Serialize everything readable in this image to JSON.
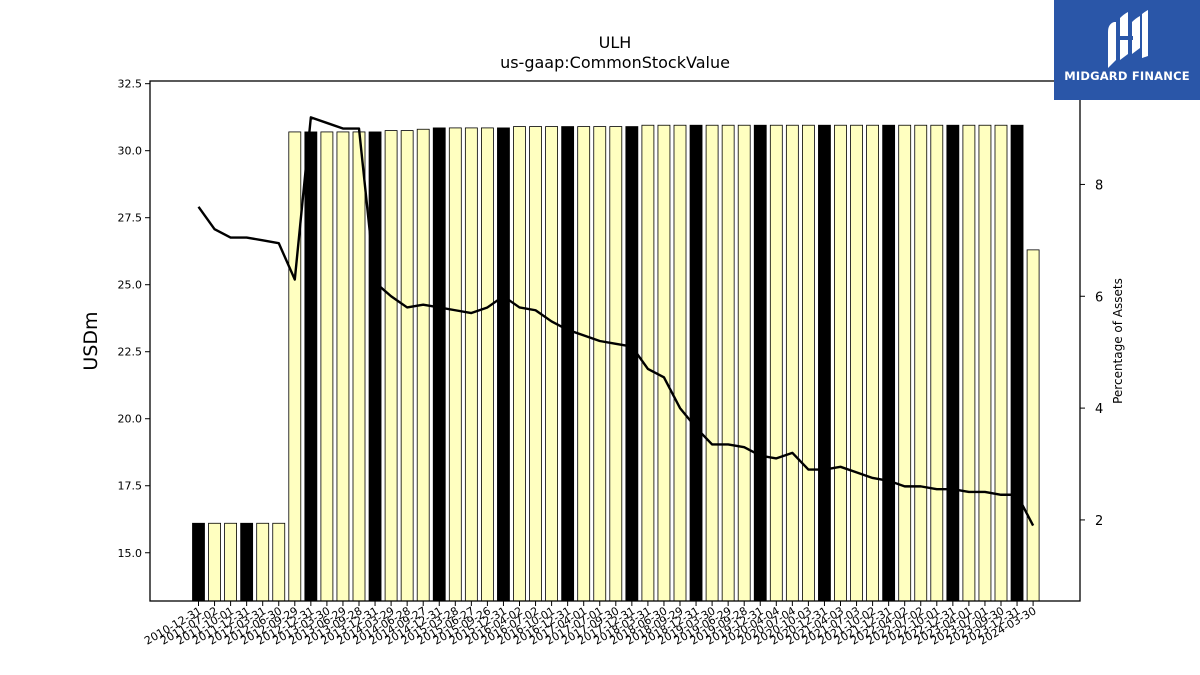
{
  "brand": {
    "name": "MIDGARD FINANCE",
    "icon": "midgard-logo-icon",
    "color": "#2a56a8"
  },
  "chart_data": {
    "type": "bar",
    "title": "ULH",
    "subtitle": "us-gaap:CommonStockValue",
    "ylabel": "USDm",
    "y2label": "Percentage of Assets",
    "ylim": [
      13.2,
      32.6
    ],
    "y2lim": [
      0.55,
      9.85
    ],
    "yticks": [
      15.0,
      17.5,
      20.0,
      22.5,
      25.0,
      27.5,
      30.0,
      32.5
    ],
    "y2ticks": [
      2,
      4,
      6,
      8
    ],
    "colors": {
      "quarter_bar": "#ffffc0",
      "annual_bar": "#000000",
      "line": "#000000"
    },
    "categories": [
      "2010-12-31",
      "2011-07-02",
      "2011-10-01",
      "2011-12-31",
      "2012-03-31",
      "2012-06-30",
      "2012-09-29",
      "2012-12-31",
      "2013-03-30",
      "2013-06-29",
      "2013-09-28",
      "2013-12-31",
      "2014-03-29",
      "2014-06-28",
      "2014-09-27",
      "2014-12-31",
      "2015-03-28",
      "2015-06-27",
      "2015-09-26",
      "2015-12-31",
      "2016-04-02",
      "2016-07-02",
      "2016-10-01",
      "2016-12-31",
      "2017-04-01",
      "2017-07-01",
      "2017-09-30",
      "2017-12-31",
      "2018-03-31",
      "2018-06-30",
      "2018-09-29",
      "2018-12-31",
      "2019-03-30",
      "2019-06-29",
      "2019-09-28",
      "2019-12-31",
      "2020-04-04",
      "2020-07-04",
      "2020-10-03",
      "2020-12-31",
      "2021-04-03",
      "2021-07-03",
      "2021-10-02",
      "2021-12-31",
      "2022-04-02",
      "2022-07-02",
      "2022-10-01",
      "2022-12-31",
      "2023-04-01",
      "2023-07-01",
      "2023-09-30",
      "2023-12-31",
      "2024-03-30"
    ],
    "series": [
      {
        "type": "bar",
        "axis": "left",
        "values": [
          16.1,
          16.1,
          16.1,
          16.1,
          16.1,
          16.1,
          30.7,
          30.7,
          30.7,
          30.7,
          30.7,
          30.7,
          30.75,
          30.75,
          30.8,
          30.85,
          30.85,
          30.85,
          30.85,
          30.85,
          30.9,
          30.9,
          30.9,
          30.9,
          30.9,
          30.9,
          30.9,
          30.9,
          30.95,
          30.95,
          30.95,
          30.95,
          30.95,
          30.95,
          30.95,
          30.95,
          30.95,
          30.95,
          30.95,
          30.95,
          30.95,
          30.95,
          30.95,
          30.95,
          30.95,
          30.95,
          30.95,
          30.95,
          30.95,
          30.95,
          30.95,
          30.95,
          26.3
        ],
        "annual": [
          true,
          false,
          false,
          true,
          false,
          false,
          false,
          true,
          false,
          false,
          false,
          true,
          false,
          false,
          false,
          true,
          false,
          false,
          false,
          true,
          false,
          false,
          false,
          true,
          false,
          false,
          false,
          true,
          false,
          false,
          false,
          true,
          false,
          false,
          false,
          true,
          false,
          false,
          false,
          true,
          false,
          false,
          false,
          true,
          false,
          false,
          false,
          true,
          false,
          false,
          false,
          true,
          false
        ]
      },
      {
        "type": "line",
        "axis": "right",
        "values": [
          7.6,
          7.2,
          7.05,
          7.05,
          7.0,
          6.95,
          6.3,
          9.2,
          9.1,
          9.0,
          9.0,
          6.25,
          6.0,
          5.8,
          5.85,
          5.8,
          5.75,
          5.7,
          5.8,
          6.0,
          5.8,
          5.75,
          5.55,
          5.4,
          5.3,
          5.2,
          5.15,
          5.1,
          4.7,
          4.55,
          4.0,
          3.65,
          3.35,
          3.35,
          3.3,
          3.15,
          3.1,
          3.2,
          2.9,
          2.9,
          2.95,
          2.85,
          2.75,
          2.7,
          2.6,
          2.6,
          2.55,
          2.55,
          2.5,
          2.5,
          2.45,
          2.45,
          1.9
        ]
      }
    ]
  }
}
